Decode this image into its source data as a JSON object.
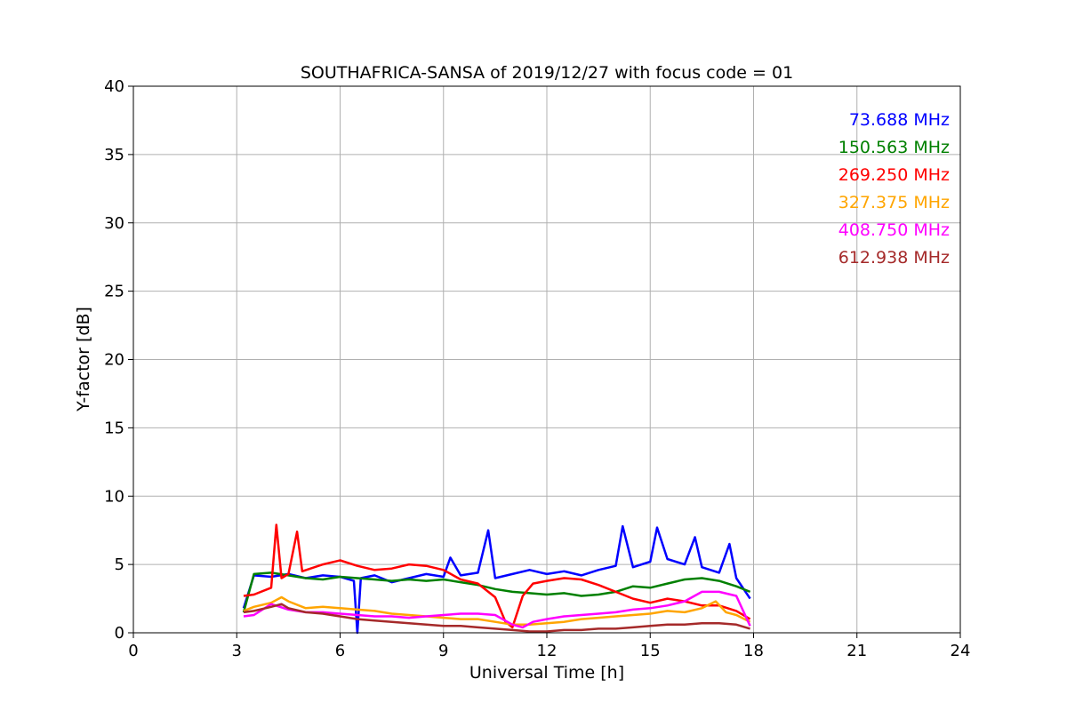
{
  "chart_data": {
    "type": "line",
    "title": "SOUTHAFRICA-SANSA of 2019/12/27 with focus code = 01",
    "xlabel": "Universal Time [h]",
    "ylabel": "Y-factor [dB]",
    "xlim": [
      0,
      24
    ],
    "ylim": [
      0,
      40
    ],
    "xticks": [
      0,
      3,
      6,
      9,
      12,
      15,
      18,
      21,
      24
    ],
    "yticks": [
      0,
      5,
      10,
      15,
      20,
      25,
      30,
      35,
      40
    ],
    "grid": true,
    "legend_position": "top-right",
    "series": [
      {
        "name": "73.688 MHz",
        "color": "#0000ff",
        "points": [
          [
            3.2,
            1.8
          ],
          [
            3.5,
            4.2
          ],
          [
            4.0,
            4.1
          ],
          [
            4.5,
            4.3
          ],
          [
            5.0,
            4.0
          ],
          [
            5.5,
            4.2
          ],
          [
            6.0,
            4.1
          ],
          [
            6.4,
            3.8
          ],
          [
            6.5,
            0.0
          ],
          [
            6.6,
            4.0
          ],
          [
            7.0,
            4.2
          ],
          [
            7.5,
            3.7
          ],
          [
            8.0,
            4.0
          ],
          [
            8.5,
            4.3
          ],
          [
            9.0,
            4.1
          ],
          [
            9.2,
            5.5
          ],
          [
            9.5,
            4.2
          ],
          [
            10.0,
            4.4
          ],
          [
            10.3,
            7.5
          ],
          [
            10.5,
            4.0
          ],
          [
            11.0,
            4.3
          ],
          [
            11.5,
            4.6
          ],
          [
            12.0,
            4.3
          ],
          [
            12.5,
            4.5
          ],
          [
            13.0,
            4.2
          ],
          [
            13.5,
            4.6
          ],
          [
            14.0,
            4.9
          ],
          [
            14.2,
            7.8
          ],
          [
            14.5,
            4.8
          ],
          [
            15.0,
            5.2
          ],
          [
            15.2,
            7.7
          ],
          [
            15.5,
            5.4
          ],
          [
            16.0,
            5.0
          ],
          [
            16.3,
            7.0
          ],
          [
            16.5,
            4.8
          ],
          [
            17.0,
            4.4
          ],
          [
            17.3,
            6.5
          ],
          [
            17.5,
            4.0
          ],
          [
            17.9,
            2.5
          ]
        ]
      },
      {
        "name": "150.563 MHz",
        "color": "#008000",
        "points": [
          [
            3.2,
            1.5
          ],
          [
            3.5,
            4.3
          ],
          [
            4.0,
            4.4
          ],
          [
            4.5,
            4.2
          ],
          [
            5.0,
            4.0
          ],
          [
            5.5,
            3.9
          ],
          [
            6.0,
            4.1
          ],
          [
            6.5,
            4.0
          ],
          [
            7.0,
            3.9
          ],
          [
            7.5,
            3.8
          ],
          [
            8.0,
            3.9
          ],
          [
            8.5,
            3.8
          ],
          [
            9.0,
            3.9
          ],
          [
            9.5,
            3.7
          ],
          [
            10.0,
            3.5
          ],
          [
            10.5,
            3.2
          ],
          [
            11.0,
            3.0
          ],
          [
            11.5,
            2.9
          ],
          [
            12.0,
            2.8
          ],
          [
            12.5,
            2.9
          ],
          [
            13.0,
            2.7
          ],
          [
            13.5,
            2.8
          ],
          [
            14.0,
            3.0
          ],
          [
            14.5,
            3.4
          ],
          [
            15.0,
            3.3
          ],
          [
            15.5,
            3.6
          ],
          [
            16.0,
            3.9
          ],
          [
            16.5,
            4.0
          ],
          [
            17.0,
            3.8
          ],
          [
            17.5,
            3.4
          ],
          [
            17.9,
            3.0
          ]
        ]
      },
      {
        "name": "269.250 MHz",
        "color": "#ff0000",
        "points": [
          [
            3.2,
            2.7
          ],
          [
            3.5,
            2.8
          ],
          [
            4.0,
            3.3
          ],
          [
            4.15,
            7.9
          ],
          [
            4.3,
            4.0
          ],
          [
            4.5,
            4.3
          ],
          [
            4.75,
            7.4
          ],
          [
            4.9,
            4.5
          ],
          [
            5.5,
            5.0
          ],
          [
            6.0,
            5.3
          ],
          [
            6.5,
            4.9
          ],
          [
            7.0,
            4.6
          ],
          [
            7.5,
            4.7
          ],
          [
            8.0,
            5.0
          ],
          [
            8.5,
            4.9
          ],
          [
            9.0,
            4.6
          ],
          [
            9.5,
            3.9
          ],
          [
            10.0,
            3.6
          ],
          [
            10.5,
            2.6
          ],
          [
            10.8,
            0.8
          ],
          [
            11.0,
            0.4
          ],
          [
            11.3,
            2.7
          ],
          [
            11.6,
            3.6
          ],
          [
            12.0,
            3.8
          ],
          [
            12.5,
            4.0
          ],
          [
            13.0,
            3.9
          ],
          [
            13.5,
            3.5
          ],
          [
            14.0,
            3.0
          ],
          [
            14.5,
            2.5
          ],
          [
            15.0,
            2.2
          ],
          [
            15.5,
            2.5
          ],
          [
            16.0,
            2.3
          ],
          [
            16.5,
            2.0
          ],
          [
            17.0,
            2.0
          ],
          [
            17.5,
            1.6
          ],
          [
            17.9,
            1.0
          ]
        ]
      },
      {
        "name": "327.375 MHz",
        "color": "#ffa500",
        "points": [
          [
            3.2,
            1.6
          ],
          [
            3.5,
            1.9
          ],
          [
            4.0,
            2.2
          ],
          [
            4.3,
            2.6
          ],
          [
            4.5,
            2.3
          ],
          [
            5.0,
            1.8
          ],
          [
            5.5,
            1.9
          ],
          [
            6.0,
            1.8
          ],
          [
            6.5,
            1.7
          ],
          [
            7.0,
            1.6
          ],
          [
            7.5,
            1.4
          ],
          [
            8.0,
            1.3
          ],
          [
            8.5,
            1.2
          ],
          [
            9.0,
            1.1
          ],
          [
            9.5,
            1.0
          ],
          [
            10.0,
            1.0
          ],
          [
            10.5,
            0.8
          ],
          [
            11.0,
            0.6
          ],
          [
            11.5,
            0.6
          ],
          [
            12.0,
            0.7
          ],
          [
            12.5,
            0.8
          ],
          [
            13.0,
            1.0
          ],
          [
            13.5,
            1.1
          ],
          [
            14.0,
            1.2
          ],
          [
            14.5,
            1.3
          ],
          [
            15.0,
            1.4
          ],
          [
            15.5,
            1.6
          ],
          [
            16.0,
            1.5
          ],
          [
            16.5,
            1.8
          ],
          [
            16.9,
            2.3
          ],
          [
            17.2,
            1.5
          ],
          [
            17.5,
            1.3
          ],
          [
            17.9,
            0.8
          ]
        ]
      },
      {
        "name": "408.750 MHz",
        "color": "#ff00ff",
        "points": [
          [
            3.2,
            1.2
          ],
          [
            3.5,
            1.3
          ],
          [
            4.0,
            2.1
          ],
          [
            4.5,
            1.7
          ],
          [
            5.0,
            1.5
          ],
          [
            5.5,
            1.5
          ],
          [
            6.0,
            1.4
          ],
          [
            6.5,
            1.3
          ],
          [
            7.0,
            1.2
          ],
          [
            7.5,
            1.2
          ],
          [
            8.0,
            1.1
          ],
          [
            8.5,
            1.2
          ],
          [
            9.0,
            1.3
          ],
          [
            9.5,
            1.4
          ],
          [
            10.0,
            1.4
          ],
          [
            10.5,
            1.3
          ],
          [
            11.0,
            0.6
          ],
          [
            11.3,
            0.4
          ],
          [
            11.6,
            0.8
          ],
          [
            12.0,
            1.0
          ],
          [
            12.5,
            1.2
          ],
          [
            13.0,
            1.3
          ],
          [
            13.5,
            1.4
          ],
          [
            14.0,
            1.5
          ],
          [
            14.5,
            1.7
          ],
          [
            15.0,
            1.8
          ],
          [
            15.5,
            2.0
          ],
          [
            16.0,
            2.3
          ],
          [
            16.5,
            3.0
          ],
          [
            17.0,
            3.0
          ],
          [
            17.5,
            2.7
          ],
          [
            17.9,
            0.5
          ]
        ]
      },
      {
        "name": "612.938 MHz",
        "color": "#a52a2a",
        "points": [
          [
            3.2,
            1.5
          ],
          [
            3.5,
            1.6
          ],
          [
            4.0,
            1.9
          ],
          [
            4.3,
            2.1
          ],
          [
            4.5,
            1.8
          ],
          [
            5.0,
            1.5
          ],
          [
            5.5,
            1.4
          ],
          [
            6.0,
            1.2
          ],
          [
            6.5,
            1.0
          ],
          [
            7.0,
            0.9
          ],
          [
            7.5,
            0.8
          ],
          [
            8.0,
            0.7
          ],
          [
            8.5,
            0.6
          ],
          [
            9.0,
            0.5
          ],
          [
            9.5,
            0.5
          ],
          [
            10.0,
            0.4
          ],
          [
            10.5,
            0.3
          ],
          [
            11.0,
            0.2
          ],
          [
            11.5,
            0.1
          ],
          [
            12.0,
            0.1
          ],
          [
            12.5,
            0.2
          ],
          [
            13.0,
            0.2
          ],
          [
            13.5,
            0.3
          ],
          [
            14.0,
            0.3
          ],
          [
            14.5,
            0.4
          ],
          [
            15.0,
            0.5
          ],
          [
            15.5,
            0.6
          ],
          [
            16.0,
            0.6
          ],
          [
            16.5,
            0.7
          ],
          [
            17.0,
            0.7
          ],
          [
            17.5,
            0.6
          ],
          [
            17.9,
            0.3
          ]
        ]
      }
    ]
  }
}
